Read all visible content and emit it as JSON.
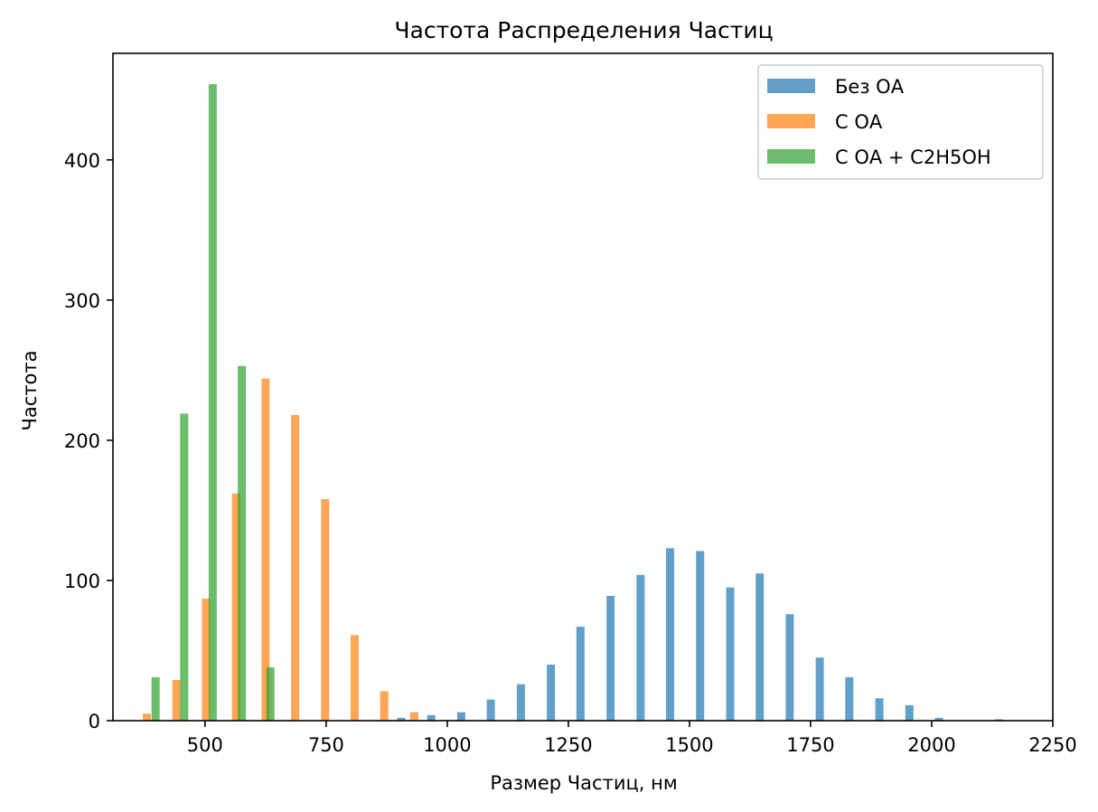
{
  "chart_data": {
    "type": "bar",
    "title": "Частота Распределения Частиц",
    "xlabel": "Размер Частиц, нм",
    "ylabel": "Частота",
    "xlim": [
      310,
      2250
    ],
    "ylim": [
      0,
      476
    ],
    "xticks": [
      500,
      750,
      1000,
      1250,
      1500,
      1750,
      2000,
      2250
    ],
    "yticks": [
      0,
      100,
      200,
      300,
      400
    ],
    "grid": false,
    "legend_position": "top-right",
    "series": [
      {
        "name": "Без ОА",
        "color": "#1f77b4",
        "opacity": 0.7,
        "x": [
          905,
          967,
          1029,
          1090,
          1152,
          1214,
          1275,
          1337,
          1399,
          1460,
          1522,
          1584,
          1645,
          1707,
          1769,
          1830,
          1892,
          1954,
          2015,
          2139
        ],
        "values": [
          2,
          4,
          6,
          15,
          26,
          40,
          67,
          89,
          104,
          123,
          121,
          95,
          105,
          76,
          45,
          31,
          16,
          11,
          2,
          1
        ]
      },
      {
        "name": "С ОА",
        "color": "#ff7f0e",
        "opacity": 0.7,
        "x": [
          380,
          441,
          502,
          564,
          625,
          686,
          748,
          809,
          870,
          932
        ],
        "values": [
          5,
          29,
          87,
          162,
          244,
          218,
          158,
          61,
          21,
          6
        ]
      },
      {
        "name": "С ОА + C2H5OH",
        "color": "#2ca02c",
        "opacity": 0.7,
        "x": [
          398,
          457,
          516,
          576,
          635
        ],
        "values": [
          31,
          219,
          454,
          253,
          38
        ]
      }
    ]
  }
}
